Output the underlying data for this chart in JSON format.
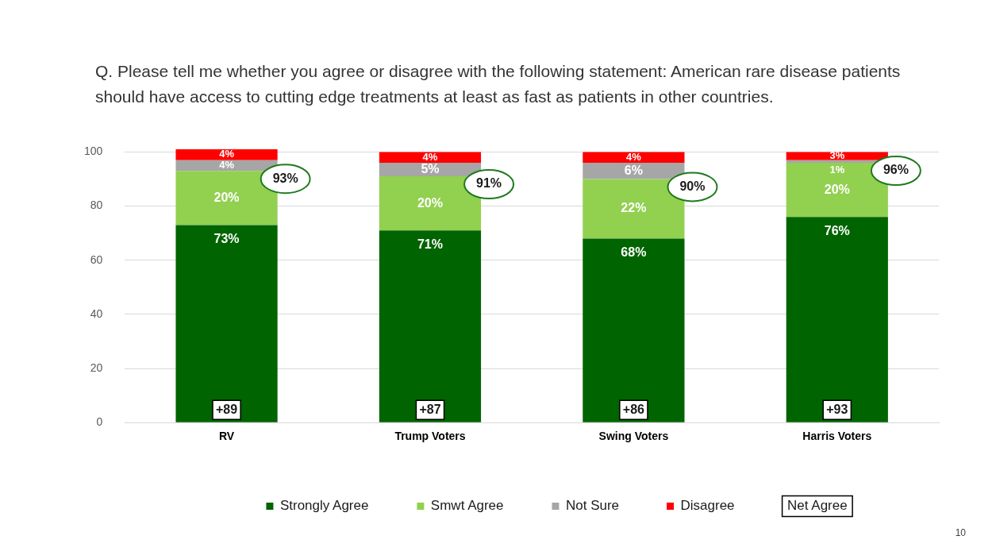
{
  "chart_data": {
    "type": "bar",
    "stacked": true,
    "title": "Q. Please tell me whether you agree or disagree with the following statement: American rare disease patients should have access to cutting edge treatments at least as fast as patients in other countries.",
    "categories": [
      "RV",
      "Trump Voters",
      "Swing Voters",
      "Harris Voters"
    ],
    "series": [
      {
        "name": "Strongly Agree",
        "color": "#006400",
        "values": [
          73,
          71,
          68,
          76
        ],
        "value_labels": [
          "73%",
          "71%",
          "68%",
          "76%"
        ]
      },
      {
        "name": "Smwt Agree",
        "color": "#92d050",
        "values": [
          20,
          20,
          22,
          20
        ],
        "value_labels": [
          "20%",
          "20%",
          "22%",
          "20%"
        ]
      },
      {
        "name": "Not Sure",
        "color": "#a6a6a6",
        "values": [
          4,
          5,
          6,
          1
        ],
        "value_labels": [
          "4%",
          "5%",
          "6%",
          "1%"
        ]
      },
      {
        "name": "Disagree",
        "color": "#ff0000",
        "values": [
          4,
          4,
          4,
          3
        ],
        "value_labels": [
          "4%",
          "4%",
          "4%",
          "3%"
        ]
      }
    ],
    "ylim": [
      0,
      101
    ],
    "yticks": [
      0,
      20,
      40,
      60,
      80,
      100
    ],
    "grid": "y",
    "legend": "bottom",
    "annotations": [
      "93%",
      "91%",
      "90%",
      "96%",
      {
        "text": "+89",
        "x": "RV"
      },
      {
        "text": "+87",
        "x": "Trump Voters"
      },
      {
        "text": "+86",
        "x": "Swing Voters"
      },
      {
        "text": "+93",
        "x": "Harris Voters"
      },
      "Net Agree",
      "10"
    ]
  }
}
